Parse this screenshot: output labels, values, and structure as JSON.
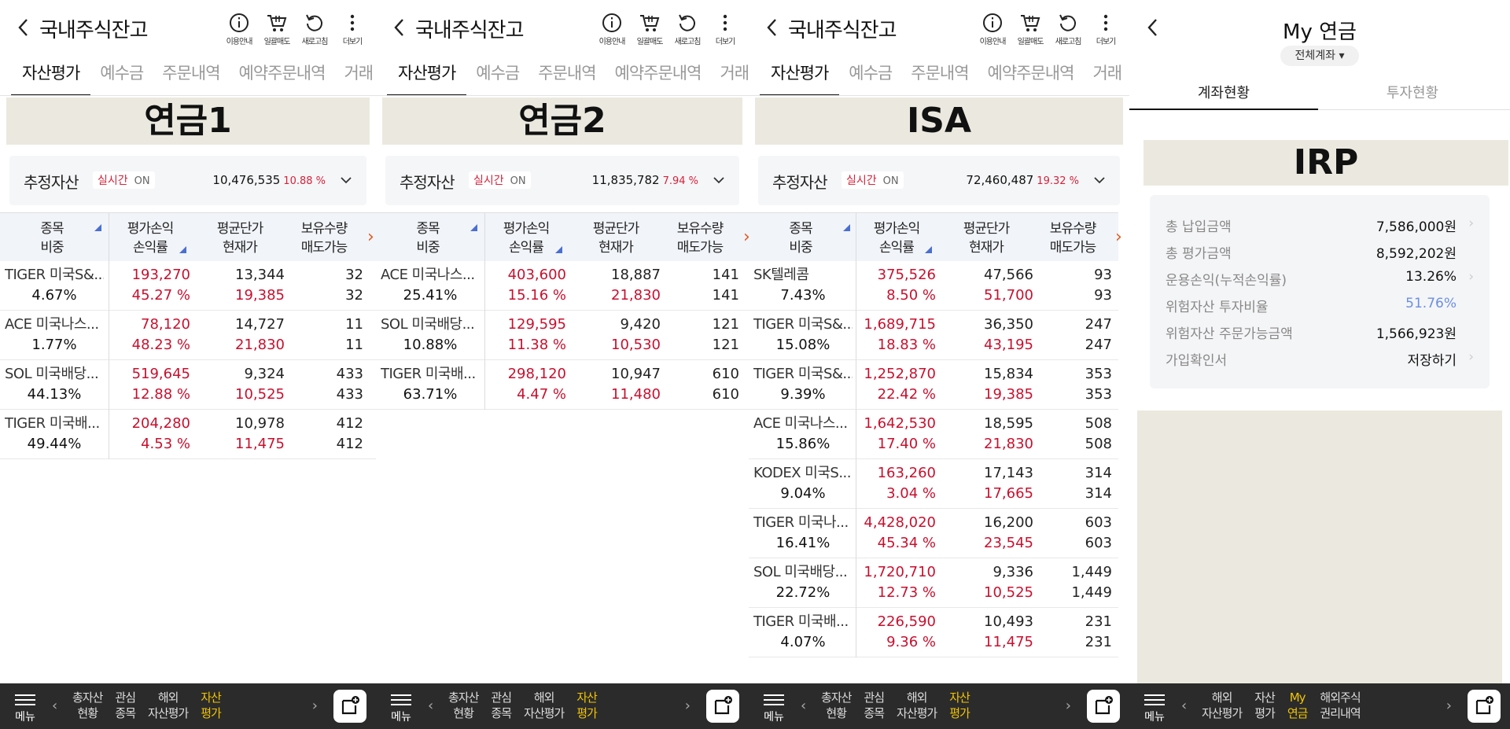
{
  "common": {
    "title": "국내주식잔고",
    "icons": [
      "이용안내",
      "일괄매도",
      "새로고침",
      "더보기"
    ],
    "tabs": [
      "자산평가",
      "예수금",
      "주문내역",
      "예약주문내역",
      "거래"
    ],
    "estimate_label": "추정자산",
    "realtime": "실시간",
    "on": "ON",
    "headers": {
      "c1a": "종목",
      "c1b": "비중",
      "c2a": "평가손익",
      "c2b": "손익률",
      "c3a": "평균단가",
      "c3b": "현재가",
      "c4a": "보유수량",
      "c4b": "매도가능"
    },
    "menu": "메뉴",
    "nav": [
      [
        "총자산",
        "현황"
      ],
      [
        "관심",
        "종목"
      ],
      [
        "해외",
        "자산평가"
      ],
      [
        "자산",
        "평가"
      ]
    ]
  },
  "panels": [
    {
      "label": "연금1",
      "estimate": "10,476,535",
      "rate": "10.88 %",
      "rows": [
        {
          "name": "TIGER 미국S&...",
          "weight": "4.67%",
          "pl": "193,270",
          "rate": "45.27 %",
          "avg": "13,344",
          "cur": "19,385",
          "qty": "32",
          "sell": "32"
        },
        {
          "name": "ACE 미국나스...",
          "weight": "1.77%",
          "pl": "78,120",
          "rate": "48.23 %",
          "avg": "14,727",
          "cur": "21,830",
          "qty": "11",
          "sell": "11"
        },
        {
          "name": "SOL 미국배당...",
          "weight": "44.13%",
          "pl": "519,645",
          "rate": "12.88 %",
          "avg": "9,324",
          "cur": "10,525",
          "qty": "433",
          "sell": "433"
        },
        {
          "name": "TIGER 미국배...",
          "weight": "49.44%",
          "pl": "204,280",
          "rate": "4.53 %",
          "avg": "10,978",
          "cur": "11,475",
          "qty": "412",
          "sell": "412"
        }
      ]
    },
    {
      "label": "연금2",
      "estimate": "11,835,782",
      "rate": "7.94 %",
      "rows": [
        {
          "name": "ACE 미국나스...",
          "weight": "25.41%",
          "pl": "403,600",
          "rate": "15.16 %",
          "avg": "18,887",
          "cur": "21,830",
          "qty": "141",
          "sell": "141"
        },
        {
          "name": "SOL 미국배당...",
          "weight": "10.88%",
          "pl": "129,595",
          "rate": "11.38 %",
          "avg": "9,420",
          "cur": "10,530",
          "qty": "121",
          "sell": "121"
        },
        {
          "name": "TIGER 미국배...",
          "weight": "63.71%",
          "pl": "298,120",
          "rate": "4.47 %",
          "avg": "10,947",
          "cur": "11,480",
          "qty": "610",
          "sell": "610"
        }
      ]
    },
    {
      "label": "ISA",
      "estimate": "72,460,487",
      "rate": "19.32 %",
      "rows": [
        {
          "name": "SK텔레콤",
          "weight": "7.43%",
          "pl": "375,526",
          "rate": "8.50 %",
          "avg": "47,566",
          "cur": "51,700",
          "qty": "93",
          "sell": "93"
        },
        {
          "name": "TIGER 미국S&...",
          "weight": "15.08%",
          "pl": "1,689,715",
          "rate": "18.83 %",
          "avg": "36,350",
          "cur": "43,195",
          "qty": "247",
          "sell": "247"
        },
        {
          "name": "TIGER 미국S&...",
          "weight": "9.39%",
          "pl": "1,252,870",
          "rate": "22.42 %",
          "avg": "15,834",
          "cur": "19,385",
          "qty": "353",
          "sell": "353"
        },
        {
          "name": "ACE 미국나스...",
          "weight": "15.86%",
          "pl": "1,642,530",
          "rate": "17.40 %",
          "avg": "18,595",
          "cur": "21,830",
          "qty": "508",
          "sell": "508"
        },
        {
          "name": "KODEX 미국S...",
          "weight": "9.04%",
          "pl": "163,260",
          "rate": "3.04 %",
          "avg": "17,143",
          "cur": "17,665",
          "qty": "314",
          "sell": "314"
        },
        {
          "name": "TIGER 미국나...",
          "weight": "16.41%",
          "pl": "4,428,020",
          "rate": "45.34 %",
          "avg": "16,200",
          "cur": "23,545",
          "qty": "603",
          "sell": "603"
        },
        {
          "name": "SOL 미국배당...",
          "weight": "22.72%",
          "pl": "1,720,710",
          "rate": "12.73 %",
          "avg": "9,336",
          "cur": "10,525",
          "qty": "1,449",
          "sell": "1,449"
        },
        {
          "name": "TIGER 미국배...",
          "weight": "4.07%",
          "pl": "226,590",
          "rate": "9.36 %",
          "avg": "10,493",
          "cur": "11,475",
          "qty": "231",
          "sell": "231"
        }
      ]
    }
  ],
  "irp": {
    "title": "My 연금",
    "account": "전체계좌 ▾",
    "tabs": [
      "계좌현황",
      "투자현황"
    ],
    "label": "IRP",
    "rows": [
      {
        "k": "총 납입금액",
        "v": "7,586,000원",
        "chev": true
      },
      {
        "k": "총 평가금액",
        "v": "8,592,202원",
        "chev": false
      },
      {
        "k": "운용손익(누적손익률)",
        "v": "13.26%",
        "chev": true
      },
      {
        "k": "위험자산 투자비율",
        "v": "51.76%",
        "chev": false,
        "blue": true
      },
      {
        "k": "위험자산 주문가능금액",
        "v": "1,566,923원",
        "chev": false
      },
      {
        "k": "가입확인서",
        "v": "저장하기",
        "chev": true
      }
    ],
    "nav": [
      [
        "해외",
        "자산평가"
      ],
      [
        "자산",
        "평가"
      ],
      [
        "My",
        "연금"
      ],
      [
        "해외주식",
        "권리내역"
      ]
    ]
  },
  "colors": {
    "accent_red": "#c8102e",
    "nav_active": "#f2c500",
    "label_bg": "#ebe9df",
    "blue": "#6b8fe0"
  }
}
